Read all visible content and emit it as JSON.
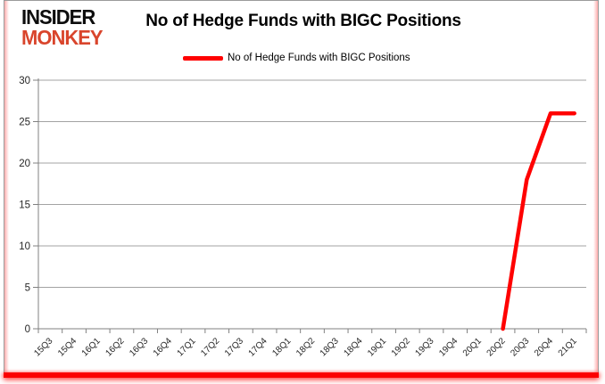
{
  "brand": {
    "line1": "INSIDER",
    "line2": "MONKEY",
    "line2_color": "#d9452c"
  },
  "header": {
    "title": "No of Hedge Funds with BIGC Positions"
  },
  "legend": {
    "label": "No of Hedge Funds with BIGC Positions"
  },
  "frame": {
    "border_color": "#9b9b9b",
    "bottom_bar_color": "#fb0101"
  },
  "chart_data": {
    "type": "line",
    "title": "No of Hedge Funds with BIGC Positions",
    "xlabel": "",
    "ylabel": "",
    "categories": [
      "15Q3",
      "15Q4",
      "16Q1",
      "16Q2",
      "16Q3",
      "16Q4",
      "17Q1",
      "17Q2",
      "17Q3",
      "17Q4",
      "18Q1",
      "18Q2",
      "18Q3",
      "18Q4",
      "19Q1",
      "19Q2",
      "19Q3",
      "19Q4",
      "20Q1",
      "20Q2",
      "20Q3",
      "20Q4",
      "21Q1"
    ],
    "series": [
      {
        "name": "No of Hedge Funds with BIGC Positions",
        "color": "#ff0000",
        "values": [
          null,
          null,
          null,
          null,
          null,
          null,
          null,
          null,
          null,
          null,
          null,
          null,
          null,
          null,
          null,
          null,
          null,
          null,
          null,
          0,
          18,
          26,
          26
        ]
      }
    ],
    "ylim": [
      0,
      30
    ],
    "yticks": [
      0,
      5,
      10,
      15,
      20,
      25,
      30
    ],
    "grid": "horizontal",
    "gridline_color": "#a3a3a3",
    "axis_color": "#808080",
    "tick_label_color": "#262626",
    "legend_position": "top"
  }
}
